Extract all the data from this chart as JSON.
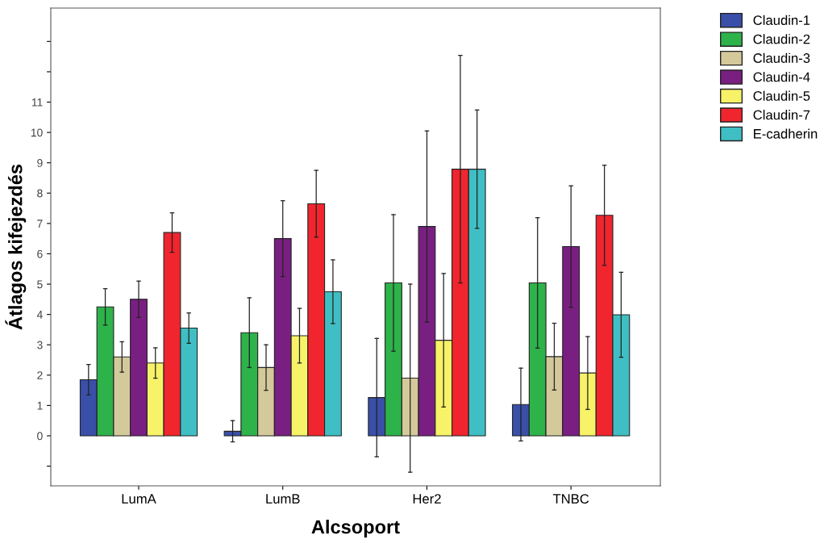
{
  "chart_data": {
    "type": "bar",
    "xlabel": "Alcsoport",
    "ylabel": "Átlagos kifejezdés",
    "categories": [
      "LumA",
      "LumB",
      "Her2",
      "TNBC"
    ],
    "ylim": [
      -1.65,
      14.1
    ],
    "yticks": [
      {
        "value": -1,
        "label": null
      },
      0,
      1,
      2,
      3,
      4,
      5,
      6,
      7,
      8,
      9,
      10,
      11,
      {
        "value": 12,
        "label": null
      },
      {
        "value": 13,
        "label": null
      }
    ],
    "grid": false,
    "legend": "top right",
    "series": [
      {
        "name": "Claudin-1",
        "color": "#3a4fa8",
        "values": [
          1.85,
          0.15,
          1.26,
          1.03
        ],
        "errors": [
          0.5,
          0.35,
          1.95,
          1.2
        ]
      },
      {
        "name": "Claudin-2",
        "color": "#2db34a",
        "values": [
          4.25,
          3.4,
          5.04,
          5.04
        ],
        "errors": [
          0.6,
          1.15,
          2.25,
          2.15
        ]
      },
      {
        "name": "Claudin-3",
        "color": "#d4c99a",
        "values": [
          2.6,
          2.25,
          1.9,
          2.61
        ],
        "errors": [
          0.5,
          0.75,
          [
            -1.2,
            5.0
          ],
          1.1
        ]
      },
      {
        "name": "Claudin-4",
        "color": "#7a1f82",
        "values": [
          4.5,
          6.5,
          6.9,
          6.24
        ],
        "errors": [
          0.6,
          1.25,
          3.15,
          2.0
        ]
      },
      {
        "name": "Claudin-5",
        "color": "#f7f267",
        "values": [
          2.4,
          3.3,
          3.15,
          2.07
        ],
        "errors": [
          0.5,
          0.9,
          2.2,
          1.2
        ]
      },
      {
        "name": "Claudin-7",
        "color": "#f0252e",
        "values": [
          6.7,
          7.65,
          8.79,
          7.27
        ],
        "errors": [
          0.65,
          1.1,
          3.75,
          1.65
        ]
      },
      {
        "name": "E-cadherin",
        "color": "#3fbfc4",
        "values": [
          3.55,
          4.75,
          8.79,
          3.99
        ],
        "errors": [
          0.5,
          1.05,
          1.95,
          1.4
        ]
      }
    ]
  }
}
